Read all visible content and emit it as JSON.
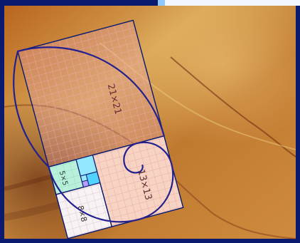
{
  "image": {
    "labels": {
      "sq21": "21×21",
      "sq13": "13×13",
      "sq8": "8×8",
      "sq5": "5×5"
    },
    "colors": {
      "border": "#0a1a6e",
      "terrain_light": "#d6a45a",
      "terrain_dark": "#9a4e1e",
      "grid_pink": "#e7a3b6",
      "grid_peach": "#f3c8ae",
      "spiral": "#23208f",
      "sq5_fill": "#b6f0d8",
      "sq8_fill": "#f6f0f2",
      "sq3_fill": "#8fe6ff",
      "sq2_fill": "#4fd1ff",
      "sq1_fill": "#b79cff"
    }
  }
}
